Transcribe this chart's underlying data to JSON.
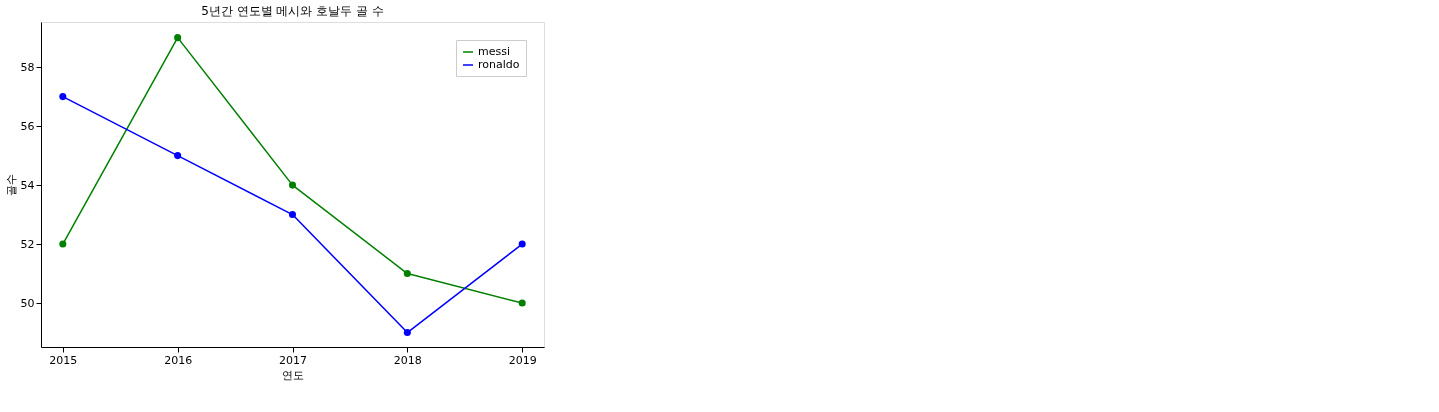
{
  "chart_data": {
    "type": "line",
    "title": "5년간 연도별 메시와 호날두 골 수",
    "xlabel": "연도",
    "ylabel": "골수",
    "x": [
      2015,
      2016,
      2017,
      2018,
      2019
    ],
    "series": [
      {
        "name": "messi",
        "color": "#008000",
        "values": [
          52,
          59,
          54,
          51,
          50
        ]
      },
      {
        "name": "ronaldo",
        "color": "#0000ff",
        "values": [
          57,
          55,
          53,
          49,
          52
        ]
      }
    ],
    "xlim": [
      2014.81,
      2019.19
    ],
    "xticks": [
      2015,
      2016,
      2017,
      2018,
      2019
    ],
    "ylim": [
      48.51,
      59.53
    ],
    "yticks": [
      50,
      52,
      54,
      56,
      58
    ],
    "grid": false,
    "legend": "top right",
    "marker": "circle",
    "line_style": "solid"
  }
}
